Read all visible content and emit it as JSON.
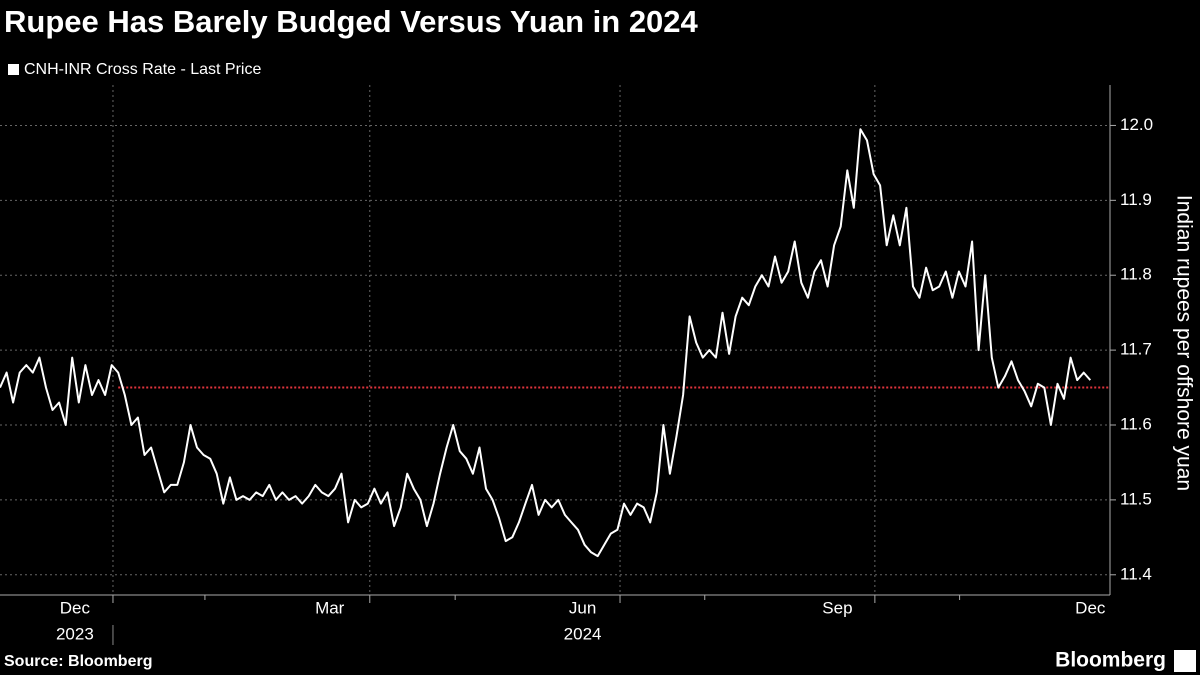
{
  "chart_data": {
    "type": "line",
    "title": "Rupee Has Barely Budged Versus Yuan in 2024",
    "y_axis_label": "Indian rupees per offshore yuan",
    "source": "Source: Bloomberg",
    "brand": "Bloomberg",
    "series": [
      {
        "name": "CNH-INR Cross Rate - Last Price",
        "color": "#ffffff",
        "values": [
          11.65,
          11.67,
          11.63,
          11.67,
          11.68,
          11.67,
          11.69,
          11.65,
          11.62,
          11.63,
          11.6,
          11.69,
          11.63,
          11.68,
          11.64,
          11.66,
          11.64,
          11.68,
          11.67,
          11.64,
          11.6,
          11.61,
          11.56,
          11.57,
          11.54,
          11.51,
          11.52,
          11.52,
          11.55,
          11.6,
          11.57,
          11.56,
          11.555,
          11.535,
          11.495,
          11.53,
          11.5,
          11.505,
          11.5,
          11.51,
          11.505,
          11.52,
          11.5,
          11.51,
          11.5,
          11.505,
          11.495,
          11.505,
          11.52,
          11.51,
          11.505,
          11.515,
          11.535,
          11.47,
          11.5,
          11.49,
          11.495,
          11.515,
          11.495,
          11.51,
          11.465,
          11.49,
          11.535,
          11.515,
          11.5,
          11.465,
          11.495,
          11.535,
          11.57,
          11.6,
          11.565,
          11.555,
          11.535,
          11.57,
          11.515,
          11.5,
          11.475,
          11.445,
          11.45,
          11.47,
          11.495,
          11.52,
          11.48,
          11.5,
          11.49,
          11.5,
          11.48,
          11.47,
          11.46,
          11.44,
          11.43,
          11.425,
          11.44,
          11.455,
          11.46,
          11.495,
          11.48,
          11.495,
          11.49,
          11.47,
          11.51,
          11.6,
          11.535,
          11.585,
          11.64,
          11.745,
          11.71,
          11.69,
          11.7,
          11.69,
          11.75,
          11.695,
          11.745,
          11.77,
          11.76,
          11.785,
          11.8,
          11.785,
          11.825,
          11.79,
          11.805,
          11.845,
          11.79,
          11.77,
          11.805,
          11.82,
          11.785,
          11.84,
          11.865,
          11.94,
          11.89,
          11.995,
          11.98,
          11.935,
          11.92,
          11.84,
          11.88,
          11.84,
          11.89,
          11.785,
          11.77,
          11.81,
          11.78,
          11.785,
          11.805,
          11.77,
          11.805,
          11.785,
          11.845,
          11.7,
          11.8,
          11.69,
          11.65,
          11.665,
          11.685,
          11.66,
          11.645,
          11.625,
          11.655,
          11.65,
          11.6,
          11.655,
          11.635,
          11.69,
          11.66,
          11.67,
          11.66
        ]
      }
    ],
    "reference_line": {
      "value": 11.65,
      "start": 18,
      "color": "#e0343d"
    },
    "xlim": [
      0,
      169
    ],
    "xticks": [
      {
        "value": 11.4,
        "label": "Dec"
      },
      {
        "value": 50.2,
        "label": "Mar"
      },
      {
        "value": 88.7,
        "label": "Jun"
      },
      {
        "value": 127.5,
        "label": "Sep"
      },
      {
        "value": 166,
        "label": "Dec"
      }
    ],
    "x_year_labels": [
      {
        "value": 11.4,
        "label": "2023"
      },
      {
        "value": 88.7,
        "label": "2024"
      }
    ],
    "x_year_divider": 17.2,
    "xgrid": [
      17.2,
      56.3,
      94.4,
      133.2
    ],
    "xminor_ticks": [
      31.2,
      69.3,
      107.3,
      146.1
    ],
    "ylim": [
      11.373,
      12.054
    ],
    "yticks": [
      11.4,
      11.5,
      11.6,
      11.7,
      11.8,
      11.9,
      {
        "value": 12.0,
        "label": "12.0"
      }
    ],
    "grid": true
  }
}
